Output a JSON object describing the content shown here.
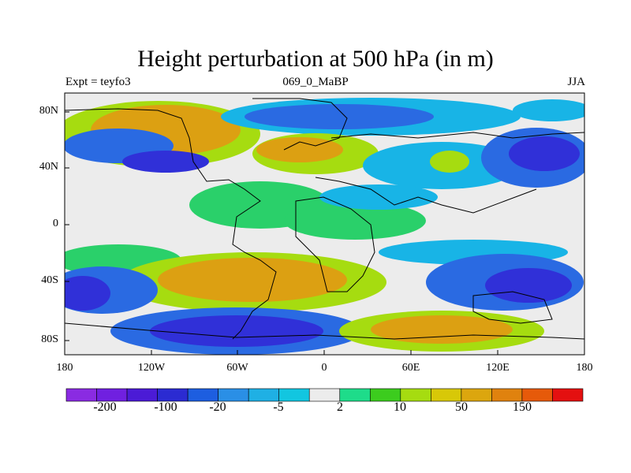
{
  "header": {
    "title": "Height perturbation at 500 hPa (in m)",
    "left": "Expt = teyfo3",
    "center": "069_0_MaBP",
    "right": "JJA"
  },
  "axes": {
    "lat_labels": [
      "80N",
      "40N",
      "0",
      "40S",
      "80S"
    ],
    "lon_labels": [
      "180",
      "120W",
      "60W",
      "0",
      "60E",
      "120E",
      "180"
    ]
  },
  "colorbar": {
    "colors": [
      "#8a2be2",
      "#7020e0",
      "#4b1bd6",
      "#2b2bd2",
      "#1d5ee0",
      "#2a8fe6",
      "#1fb0e4",
      "#12c6e0",
      "#ececec",
      "#1edc8a",
      "#3ccc1e",
      "#a6dc10",
      "#d8c808",
      "#dca60e",
      "#e0820e",
      "#e65a0a",
      "#e41010"
    ],
    "labels": [
      "-200",
      "-100",
      "-20",
      "-5",
      "2",
      "10",
      "50",
      "150"
    ]
  },
  "palette": {
    "map_bg": "#ececec",
    "deep_blue": "#3030d8",
    "blue": "#2a6ae2",
    "cyan": "#18b4e6",
    "green": "#2ad06a",
    "yellow": "#b4dc12",
    "orange": "#dca012"
  }
}
